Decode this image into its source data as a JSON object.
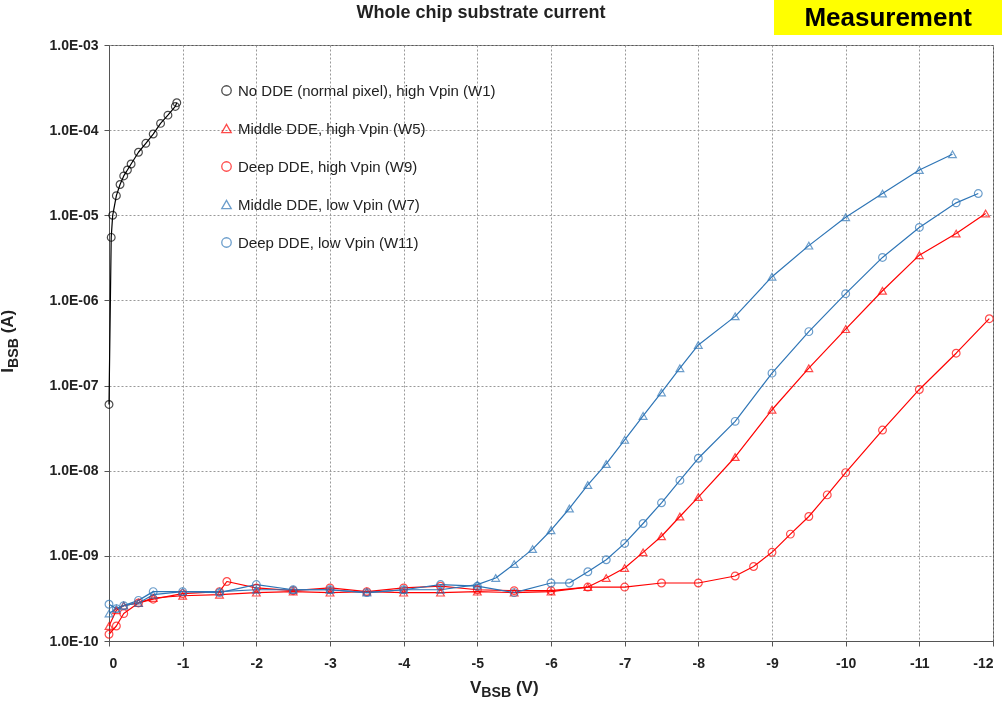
{
  "chart_data": {
    "type": "line",
    "title": "Whole chip substrate current",
    "xlabel": "V$_{BSB}$ (V)",
    "ylabel": "I$_{BSB}$ (A)",
    "annotations": [
      "Measurement"
    ],
    "log": "y",
    "grid": true,
    "legend": "top left",
    "line_style": "solid",
    "xlim": [
      0,
      -12
    ],
    "xticks": [
      0,
      -1,
      -2,
      -3,
      -4,
      -5,
      -6,
      -7,
      -8,
      -9,
      -10,
      -11,
      -12
    ],
    "ylim": [
      1e-10,
      0.001
    ],
    "yticks": [
      {
        "value": 1e-10,
        "label": "1.0E-10"
      },
      {
        "value": 1e-09,
        "label": "1.0E-09"
      },
      {
        "value": 1e-08,
        "label": "1.0E-08"
      },
      {
        "value": 1e-07,
        "label": "1.0E-07"
      },
      {
        "value": 1e-06,
        "label": "1.0E-06"
      },
      {
        "value": 1e-05,
        "label": "1.0E-05"
      },
      {
        "value": 0.0001,
        "label": "1.0E-04"
      },
      {
        "value": 0.001,
        "label": "1.0E-03"
      }
    ],
    "series": [
      {
        "name": "No DDE (normal pixel), high Vpin (W1)",
        "color": "#000000",
        "marker": "circle",
        "x": [
          0,
          -0.03,
          -0.05,
          -0.1,
          -0.15,
          -0.2,
          -0.25,
          -0.3,
          -0.4,
          -0.5,
          -0.6,
          -0.7,
          -0.8,
          -0.9,
          -0.92
        ],
        "values": [
          6e-08,
          5.5e-06,
          1e-05,
          1.7e-05,
          2.3e-05,
          2.9e-05,
          3.4e-05,
          4e-05,
          5.5e-05,
          7e-05,
          9e-05,
          0.00012,
          0.00015,
          0.00019,
          0.00021
        ]
      },
      {
        "name": "Middle DDE, high Vpin (W5)",
        "color": "#ff0000",
        "marker": "triangle",
        "x": [
          0,
          -0.1,
          -0.2,
          -0.4,
          -0.6,
          -1,
          -1.5,
          -2,
          -2.5,
          -3,
          -3.5,
          -4,
          -4.5,
          -5,
          -5.5,
          -6,
          -6.5,
          -6.75,
          -7,
          -7.25,
          -7.5,
          -7.75,
          -8,
          -8.5,
          -9,
          -9.5,
          -10,
          -10.5,
          -11,
          -11.5,
          -11.9
        ],
        "values": [
          1.5e-10,
          2.3e-10,
          2.6e-10,
          2.8e-10,
          3.2e-10,
          3.4e-10,
          3.5e-10,
          3.7e-10,
          3.8e-10,
          3.7e-10,
          3.8e-10,
          3.7e-10,
          3.7e-10,
          3.8e-10,
          3.7e-10,
          3.8e-10,
          4.3e-10,
          5.5e-10,
          7.2e-10,
          1.1e-09,
          1.7e-09,
          2.9e-09,
          4.9e-09,
          1.45e-08,
          5.2e-08,
          1.6e-07,
          4.6e-07,
          1.3e-06,
          3.4e-06,
          6.1e-06,
          1.05e-05
        ]
      },
      {
        "name": "Deep DDE, high Vpin (W9)",
        "color": "#ff0000",
        "marker": "circle",
        "x": [
          0,
          -0.1,
          -0.2,
          -0.4,
          -0.6,
          -1,
          -1.5,
          -1.6,
          -2,
          -2.5,
          -3,
          -3.5,
          -4,
          -4.5,
          -5,
          -5.5,
          -6,
          -6.5,
          -7,
          -7.5,
          -8,
          -8.5,
          -8.75,
          -9,
          -9.25,
          -9.5,
          -9.75,
          -10,
          -10.5,
          -11,
          -11.5,
          -11.95
        ],
        "values": [
          1.2e-10,
          1.5e-10,
          2.1e-10,
          2.8e-10,
          3.1e-10,
          3.6e-10,
          3.8e-10,
          5e-10,
          4.2e-10,
          3.9e-10,
          4.2e-10,
          3.8e-10,
          4.2e-10,
          4.4e-10,
          4e-10,
          3.9e-10,
          3.9e-10,
          4.3e-10,
          4.3e-10,
          4.8e-10,
          4.8e-10,
          5.8e-10,
          7.5e-10,
          1.1e-09,
          1.8e-09,
          2.9e-09,
          5.2e-09,
          9.5e-09,
          3e-08,
          9e-08,
          2.4e-07,
          6.1e-07
        ]
      },
      {
        "name": "Middle DDE, low Vpin (W7)",
        "color": "#2e75b6",
        "marker": "triangle",
        "x": [
          0,
          -0.1,
          -0.2,
          -0.4,
          -0.6,
          -1,
          -1.5,
          -2,
          -2.5,
          -3,
          -3.5,
          -4,
          -4.5,
          -5,
          -5.25,
          -5.5,
          -5.75,
          -6,
          -6.25,
          -6.5,
          -6.75,
          -7,
          -7.25,
          -7.5,
          -7.75,
          -8,
          -8.5,
          -9,
          -9.5,
          -10,
          -10.5,
          -11,
          -11.45
        ],
        "values": [
          2.1e-10,
          2.4e-10,
          2.6e-10,
          2.8e-10,
          3.5e-10,
          3.8e-10,
          3.8e-10,
          4e-10,
          4e-10,
          4e-10,
          3.7e-10,
          4e-10,
          4e-10,
          4.6e-10,
          5.5e-10,
          8e-10,
          1.2e-09,
          2e-09,
          3.6e-09,
          6.8e-09,
          1.2e-08,
          2.3e-08,
          4.4e-08,
          8.3e-08,
          1.6e-07,
          3e-07,
          6.5e-07,
          1.9e-06,
          4.4e-06,
          9.5e-06,
          1.8e-05,
          3.4e-05,
          5.2e-05
        ]
      },
      {
        "name": "Deep DDE, low Vpin (W11)",
        "color": "#2e75b6",
        "marker": "circle",
        "x": [
          0,
          -0.1,
          -0.2,
          -0.4,
          -0.6,
          -1,
          -1.5,
          -2,
          -2.5,
          -3,
          -3.5,
          -4,
          -4.5,
          -5,
          -5.5,
          -6,
          -6.25,
          -6.5,
          -6.75,
          -7,
          -7.25,
          -7.5,
          -7.75,
          -8,
          -8.5,
          -9,
          -9.5,
          -10,
          -10.5,
          -11,
          -11.5,
          -11.8
        ],
        "values": [
          2.7e-10,
          2.4e-10,
          2.6e-10,
          3e-10,
          3.8e-10,
          3.8e-10,
          3.7e-10,
          4.6e-10,
          4e-10,
          4e-10,
          3.7e-10,
          4e-10,
          4.6e-10,
          4.4e-10,
          3.7e-10,
          4.8e-10,
          4.8e-10,
          6.5e-10,
          9e-10,
          1.4e-09,
          2.4e-09,
          4.2e-09,
          7.7e-09,
          1.4e-08,
          3.8e-08,
          1.4e-07,
          4.3e-07,
          1.2e-06,
          3.2e-06,
          7.2e-06,
          1.4e-05,
          1.8e-05
        ]
      }
    ]
  }
}
